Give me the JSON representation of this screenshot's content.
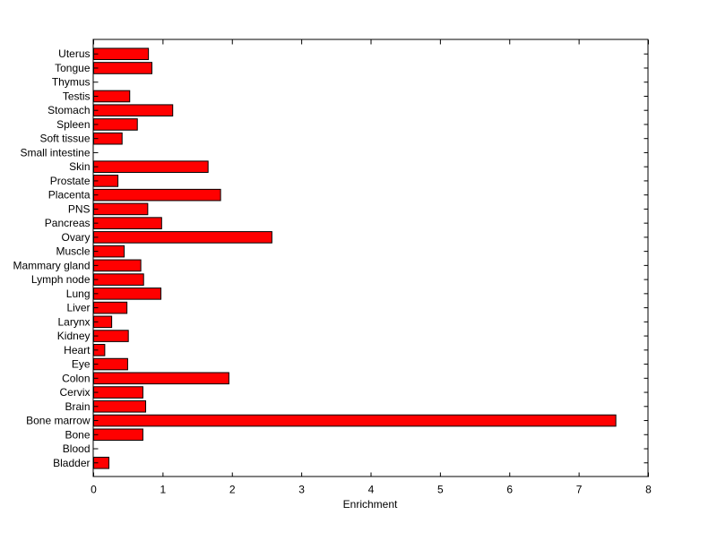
{
  "chart_data": {
    "type": "bar",
    "orientation": "horizontal",
    "title": "",
    "xlabel": "Enrichment",
    "ylabel": "",
    "xlim": [
      0,
      8
    ],
    "xticks": [
      0,
      1,
      2,
      3,
      4,
      5,
      6,
      7,
      8
    ],
    "grid": false,
    "bar_color": "#ff0000",
    "edge_color": "#000000",
    "categories": [
      "Uterus",
      "Tongue",
      "Thymus",
      "Testis",
      "Stomach",
      "Spleen",
      "Soft tissue",
      "Small intestine",
      "Skin",
      "Prostate",
      "Placenta",
      "PNS",
      "Pancreas",
      "Ovary",
      "Muscle",
      "Mammary gland",
      "Lymph node",
      "Lung",
      "Liver",
      "Larynx",
      "Kidney",
      "Heart",
      "Eye",
      "Colon",
      "Cervix",
      "Brain",
      "Bone marrow",
      "Bone",
      "Blood",
      "Bladder"
    ],
    "values": [
      0.79,
      0.84,
      0,
      0.52,
      1.14,
      0.63,
      0.41,
      0,
      1.65,
      0.35,
      1.83,
      0.78,
      0.98,
      2.57,
      0.44,
      0.68,
      0.72,
      0.97,
      0.48,
      0.26,
      0.5,
      0.16,
      0.49,
      1.95,
      0.71,
      0.75,
      7.53,
      0.71,
      0,
      0.22
    ]
  }
}
